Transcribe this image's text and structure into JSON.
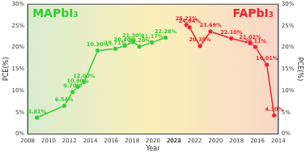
{
  "chart_data": {
    "type": "line",
    "x_title": "Year",
    "y_title": "PCE(%)",
    "y2_title": "PCE(%)",
    "xlim": [
      2008,
      2022
    ],
    "xticks": [
      2008,
      2010,
      2012,
      2014,
      2016,
      2018,
      2020,
      2022
    ],
    "x2lim": [
      2024,
      2014
    ],
    "x2ticks": [
      2024,
      2022,
      2020,
      2018,
      2016,
      2014
    ],
    "ylim": [
      0,
      30
    ],
    "yticks": [
      {
        "value": 0,
        "label": "0%"
      },
      {
        "value": 5,
        "label": "5%"
      },
      {
        "value": 10,
        "label": "10%"
      },
      {
        "value": 15,
        "label": "15%"
      },
      {
        "value": 20,
        "label": "20%"
      },
      {
        "value": 25,
        "label": "25%"
      },
      {
        "value": 30,
        "label": "30%"
      }
    ],
    "y2lim": [
      0,
      30
    ],
    "y2ticks": [
      {
        "value": 0,
        "label": "0%"
      },
      {
        "value": 5,
        "label": "5%"
      },
      {
        "value": 10,
        "label": "10%"
      },
      {
        "value": 15,
        "label": "15%"
      },
      {
        "value": 20,
        "label": "20%"
      },
      {
        "value": 25,
        "label": "25%"
      },
      {
        "value": 30,
        "label": "30%"
      }
    ],
    "grid": false,
    "data_labels": true,
    "series": [
      {
        "name": "MAPbI₃",
        "color": "#33cc33",
        "marker": "circle",
        "x": [
          2008.9,
          2011.5,
          2012.3,
          2012.8,
          2013.4,
          2014.7,
          2016.4,
          2017.3,
          2018.1,
          2018.7,
          2019.9,
          2021.2
        ],
        "values": [
          3.81,
          6.54,
          9.7,
          10.9,
          12.0,
          19.3,
          19.71,
          20.4,
          21.3,
          20.2,
          21.17,
          22.28
        ],
        "value_labels": [
          "3.81%",
          "6.54%",
          "9.70%",
          "10.90%",
          "12.00%",
          "19.30%",
          "19.71%",
          "20.40%",
          "21.30%",
          "20.20%",
          "21.17%",
          "22.28%"
        ]
      },
      {
        "name": "FAPbI₃",
        "color": "#e8242c",
        "marker": "circle",
        "axis": "y2",
        "x": [
          2022.8,
          2022.5,
          2021.5,
          2020.5,
          2018.5,
          2016.7,
          2016.2,
          2015.1,
          2014.4
        ],
        "values": [
          25.21,
          24.64,
          20.35,
          23.69,
          22.1,
          21.02,
          20.11,
          16.01,
          4.3
        ],
        "value_labels": [
          "25.21%",
          "24.64%",
          "20.35%",
          "23.69%",
          "22.10%",
          "21.02%",
          "20.11%",
          "16.01%",
          "4.30%"
        ]
      }
    ]
  }
}
